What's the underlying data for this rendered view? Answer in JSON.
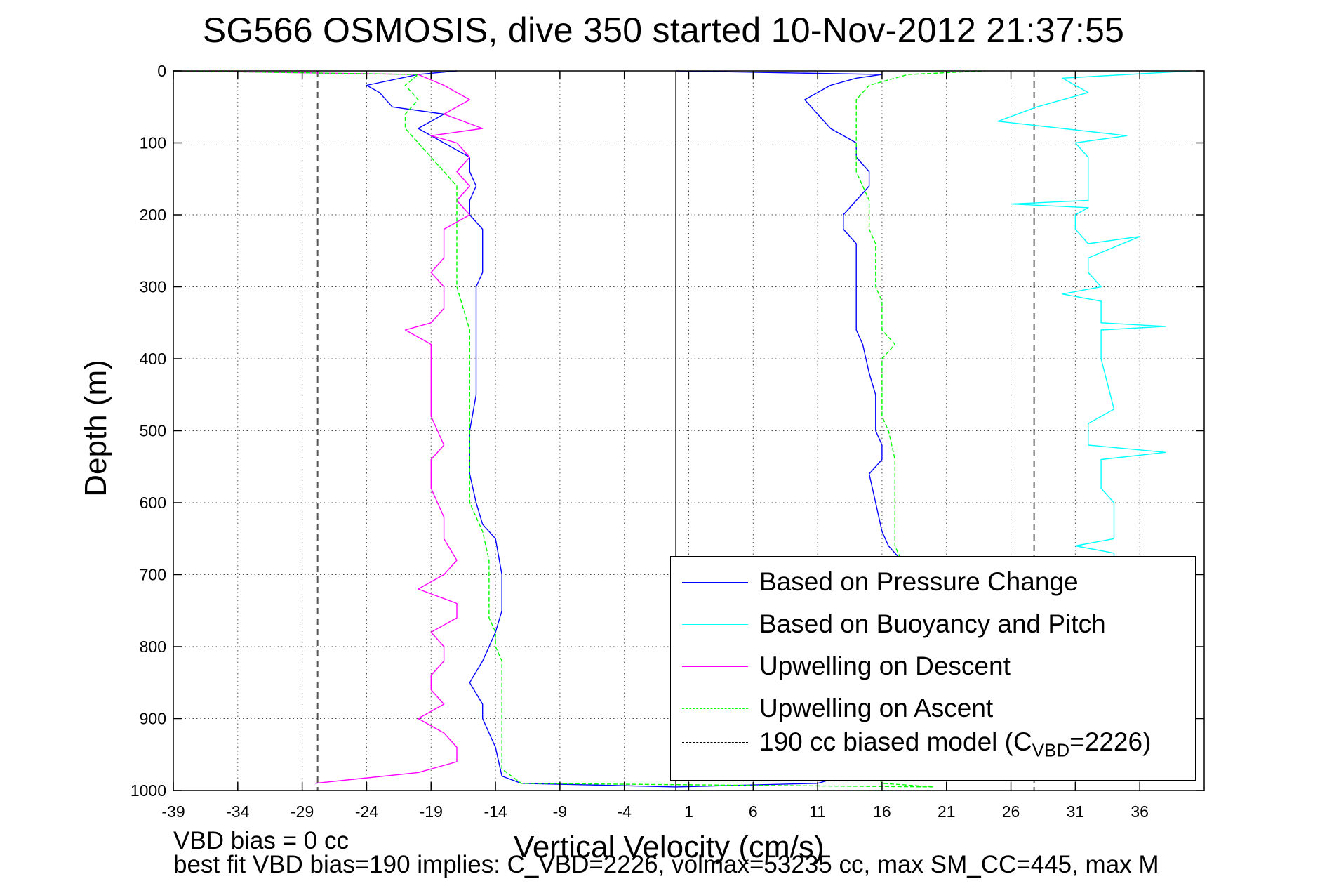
{
  "title": "SG566 OSMOSIS, dive 350 started 10-Nov-2012 21:37:55",
  "ylabel": "Depth (m)",
  "xlabel": "Vertical Velocity (cm/s)",
  "notes": {
    "vbd_bias": "VBD bias = 0 cc",
    "best_fit": "best fit VBD bias=190 implies: C_VBD=2226, volmax=53235 cc, max SM_CC=445, max M"
  },
  "legend": {
    "items": [
      {
        "label": "Based on Pressure Change",
        "color": "#0000ff",
        "style": "solid"
      },
      {
        "label": "Based on Buoyancy and Pitch",
        "color": "#00ffff",
        "style": "solid"
      },
      {
        "label": "Upwelling on Descent",
        "color": "#ff00ff",
        "style": "solid"
      },
      {
        "label": "Upwelling on Ascent",
        "color": "#00ff00",
        "style": "dashed"
      },
      {
        "label_main": "190 cc biased model (C",
        "label_sub": "VBD",
        "label_end": "=2226)",
        "color": "#000000",
        "style": "dashed"
      }
    ]
  },
  "chart_data": {
    "type": "line",
    "title": "SG566 OSMOSIS, dive 350 started 10-Nov-2012 21:37:55",
    "xlabel": "Vertical Velocity (cm/s)",
    "ylabel": "Depth (m)",
    "xlim": [
      -39,
      41
    ],
    "ylim": [
      1000,
      0
    ],
    "y_reversed": true,
    "grid": true,
    "legend_position": "bottom-right",
    "xticks": [
      -39,
      -34,
      -29,
      -24,
      -19,
      -14,
      -9,
      -4,
      1,
      6,
      11,
      16,
      21,
      26,
      31,
      36
    ],
    "yticks": [
      0,
      100,
      200,
      300,
      400,
      500,
      600,
      700,
      800,
      900,
      1000
    ],
    "reference_lines": [
      {
        "name": "zero line",
        "x": 0,
        "color": "#000000",
        "style": "solid"
      },
      {
        "name": "190 cc biased model descent",
        "x": -27.8,
        "color": "#000000",
        "style": "dashed"
      },
      {
        "name": "190 cc biased model ascent",
        "x": 27.8,
        "color": "#000000",
        "style": "dashed"
      }
    ],
    "series": [
      {
        "name": "Based on Pressure Change",
        "color": "#0000ff",
        "style": "solid",
        "points": [
          [
            -17,
            0
          ],
          [
            -20,
            5
          ],
          [
            -24,
            20
          ],
          [
            -23,
            30
          ],
          [
            -22,
            50
          ],
          [
            -18,
            60
          ],
          [
            -20,
            80
          ],
          [
            -18,
            100
          ],
          [
            -16,
            120
          ],
          [
            -16,
            140
          ],
          [
            -15.5,
            160
          ],
          [
            -16,
            180
          ],
          [
            -16,
            200
          ],
          [
            -15,
            220
          ],
          [
            -15,
            240
          ],
          [
            -15,
            260
          ],
          [
            -15,
            280
          ],
          [
            -15.5,
            300
          ],
          [
            -15.5,
            320
          ],
          [
            -15.5,
            350
          ],
          [
            -15.5,
            400
          ],
          [
            -15.5,
            450
          ],
          [
            -16,
            500
          ],
          [
            -16,
            530
          ],
          [
            -16,
            560
          ],
          [
            -15.5,
            600
          ],
          [
            -15,
            630
          ],
          [
            -14,
            650
          ],
          [
            -13.5,
            700
          ],
          [
            -13.5,
            750
          ],
          [
            -14,
            780
          ],
          [
            -15,
            820
          ],
          [
            -16,
            850
          ],
          [
            -15,
            880
          ],
          [
            -15,
            900
          ],
          [
            -14,
            940
          ],
          [
            -13.5,
            980
          ],
          [
            -12,
            990
          ],
          [
            0,
            995
          ],
          [
            11,
            990
          ],
          [
            13,
            980
          ],
          [
            15,
            960
          ],
          [
            16,
            940
          ],
          [
            16,
            900
          ],
          [
            17,
            870
          ],
          [
            17,
            850
          ],
          [
            17,
            820
          ],
          [
            17,
            800
          ],
          [
            17,
            780
          ],
          [
            17.5,
            750
          ],
          [
            17.5,
            720
          ],
          [
            17.5,
            700
          ],
          [
            17.5,
            680
          ],
          [
            16.5,
            660
          ],
          [
            16,
            640
          ],
          [
            15.5,
            600
          ],
          [
            15,
            560
          ],
          [
            16,
            540
          ],
          [
            16,
            520
          ],
          [
            15.5,
            500
          ],
          [
            15.5,
            450
          ],
          [
            15,
            420
          ],
          [
            14.5,
            380
          ],
          [
            14,
            360
          ],
          [
            14,
            340
          ],
          [
            14,
            300
          ],
          [
            14,
            260
          ],
          [
            14,
            240
          ],
          [
            13,
            220
          ],
          [
            13,
            200
          ],
          [
            14,
            180
          ],
          [
            15,
            160
          ],
          [
            15,
            140
          ],
          [
            14,
            120
          ],
          [
            14,
            100
          ],
          [
            12,
            80
          ],
          [
            11,
            60
          ],
          [
            10,
            40
          ],
          [
            12,
            20
          ],
          [
            14,
            10
          ],
          [
            16,
            5
          ],
          [
            0,
            0
          ]
        ]
      },
      {
        "name": "Based on Buoyancy and Pitch",
        "color": "#00ffff",
        "style": "solid",
        "points": [
          [
            40,
            0
          ],
          [
            30,
            10
          ],
          [
            32,
            30
          ],
          [
            28,
            50
          ],
          [
            25,
            70
          ],
          [
            30,
            80
          ],
          [
            35,
            90
          ],
          [
            31,
            100
          ],
          [
            32,
            120
          ],
          [
            32,
            140
          ],
          [
            32,
            160
          ],
          [
            32,
            180
          ],
          [
            26,
            185
          ],
          [
            32,
            190
          ],
          [
            31,
            200
          ],
          [
            31,
            220
          ],
          [
            32,
            240
          ],
          [
            36,
            230
          ],
          [
            32,
            260
          ],
          [
            32,
            280
          ],
          [
            33,
            300
          ],
          [
            30,
            310
          ],
          [
            33,
            320
          ],
          [
            33,
            350
          ],
          [
            38,
            355
          ],
          [
            33,
            360
          ],
          [
            33,
            400
          ],
          [
            34,
            470
          ],
          [
            33,
            480
          ],
          [
            32,
            490
          ],
          [
            32,
            520
          ],
          [
            38,
            530
          ],
          [
            33,
            540
          ],
          [
            33,
            560
          ],
          [
            33,
            580
          ],
          [
            34,
            600
          ],
          [
            34,
            650
          ],
          [
            31,
            660
          ],
          [
            34,
            670
          ],
          [
            34,
            680
          ]
        ]
      },
      {
        "name": "Upwelling on Descent",
        "color": "#ff00ff",
        "style": "solid",
        "points": [
          [
            -39,
            0
          ],
          [
            -20,
            5
          ],
          [
            -18,
            20
          ],
          [
            -16,
            40
          ],
          [
            -18,
            60
          ],
          [
            -15,
            80
          ],
          [
            -19,
            90
          ],
          [
            -17,
            100
          ],
          [
            -16,
            120
          ],
          [
            -17,
            140
          ],
          [
            -16,
            160
          ],
          [
            -17,
            180
          ],
          [
            -16,
            200
          ],
          [
            -18,
            220
          ],
          [
            -18,
            240
          ],
          [
            -18,
            260
          ],
          [
            -19,
            280
          ],
          [
            -18,
            300
          ],
          [
            -18,
            330
          ],
          [
            -19,
            350
          ],
          [
            -21,
            360
          ],
          [
            -19,
            380
          ],
          [
            -19,
            420
          ],
          [
            -19,
            450
          ],
          [
            -19,
            480
          ],
          [
            -18,
            520
          ],
          [
            -19,
            540
          ],
          [
            -19,
            580
          ],
          [
            -18,
            620
          ],
          [
            -18,
            650
          ],
          [
            -17,
            680
          ],
          [
            -18,
            700
          ],
          [
            -20,
            720
          ],
          [
            -17,
            740
          ],
          [
            -17,
            760
          ],
          [
            -19,
            780
          ],
          [
            -18,
            800
          ],
          [
            -18,
            820
          ],
          [
            -19,
            840
          ],
          [
            -19,
            860
          ],
          [
            -18,
            880
          ],
          [
            -20,
            900
          ],
          [
            -18,
            920
          ],
          [
            -17,
            940
          ],
          [
            -17,
            960
          ],
          [
            -20,
            975
          ],
          [
            -28,
            990
          ]
        ]
      },
      {
        "name": "Upwelling on Ascent",
        "color": "#00ff00",
        "style": "dashed",
        "points": [
          [
            -39,
            0
          ],
          [
            -20,
            5
          ],
          [
            -21,
            20
          ],
          [
            -20,
            40
          ],
          [
            -21,
            60
          ],
          [
            -21,
            80
          ],
          [
            -20,
            100
          ],
          [
            -19,
            120
          ],
          [
            -18,
            140
          ],
          [
            -17,
            160
          ],
          [
            -17,
            180
          ],
          [
            -17,
            200
          ],
          [
            -17,
            220
          ],
          [
            -17,
            250
          ],
          [
            -17,
            280
          ],
          [
            -17,
            300
          ],
          [
            -16.5,
            330
          ],
          [
            -16,
            360
          ],
          [
            -16,
            400
          ],
          [
            -16,
            440
          ],
          [
            -16,
            480
          ],
          [
            -16,
            520
          ],
          [
            -16,
            560
          ],
          [
            -16,
            600
          ],
          [
            -15,
            640
          ],
          [
            -14.5,
            680
          ],
          [
            -14.5,
            720
          ],
          [
            -14.5,
            760
          ],
          [
            -14,
            780
          ],
          [
            -14,
            800
          ],
          [
            -13.5,
            820
          ],
          [
            -13.5,
            860
          ],
          [
            -13.5,
            900
          ],
          [
            -13.5,
            940
          ],
          [
            -13.5,
            970
          ],
          [
            -12,
            990
          ],
          [
            20,
            995
          ],
          [
            16,
            990
          ],
          [
            15,
            960
          ],
          [
            16,
            920
          ],
          [
            16,
            880
          ],
          [
            16,
            840
          ],
          [
            16,
            800
          ],
          [
            16.5,
            760
          ],
          [
            17,
            720
          ],
          [
            17.5,
            700
          ],
          [
            17.5,
            680
          ],
          [
            17,
            660
          ],
          [
            17,
            640
          ],
          [
            17,
            620
          ],
          [
            17,
            600
          ],
          [
            17,
            560
          ],
          [
            17,
            540
          ],
          [
            16.5,
            500
          ],
          [
            16,
            480
          ],
          [
            16,
            440
          ],
          [
            16,
            400
          ],
          [
            17,
            380
          ],
          [
            16,
            360
          ],
          [
            16,
            340
          ],
          [
            16,
            320
          ],
          [
            15.5,
            300
          ],
          [
            15.5,
            260
          ],
          [
            15.5,
            240
          ],
          [
            15,
            220
          ],
          [
            15,
            200
          ],
          [
            15,
            180
          ],
          [
            14.5,
            160
          ],
          [
            14,
            140
          ],
          [
            14,
            120
          ],
          [
            14,
            100
          ],
          [
            14,
            80
          ],
          [
            14,
            60
          ],
          [
            14,
            40
          ],
          [
            15,
            20
          ],
          [
            18,
            5
          ],
          [
            24,
            0
          ]
        ]
      }
    ]
  }
}
